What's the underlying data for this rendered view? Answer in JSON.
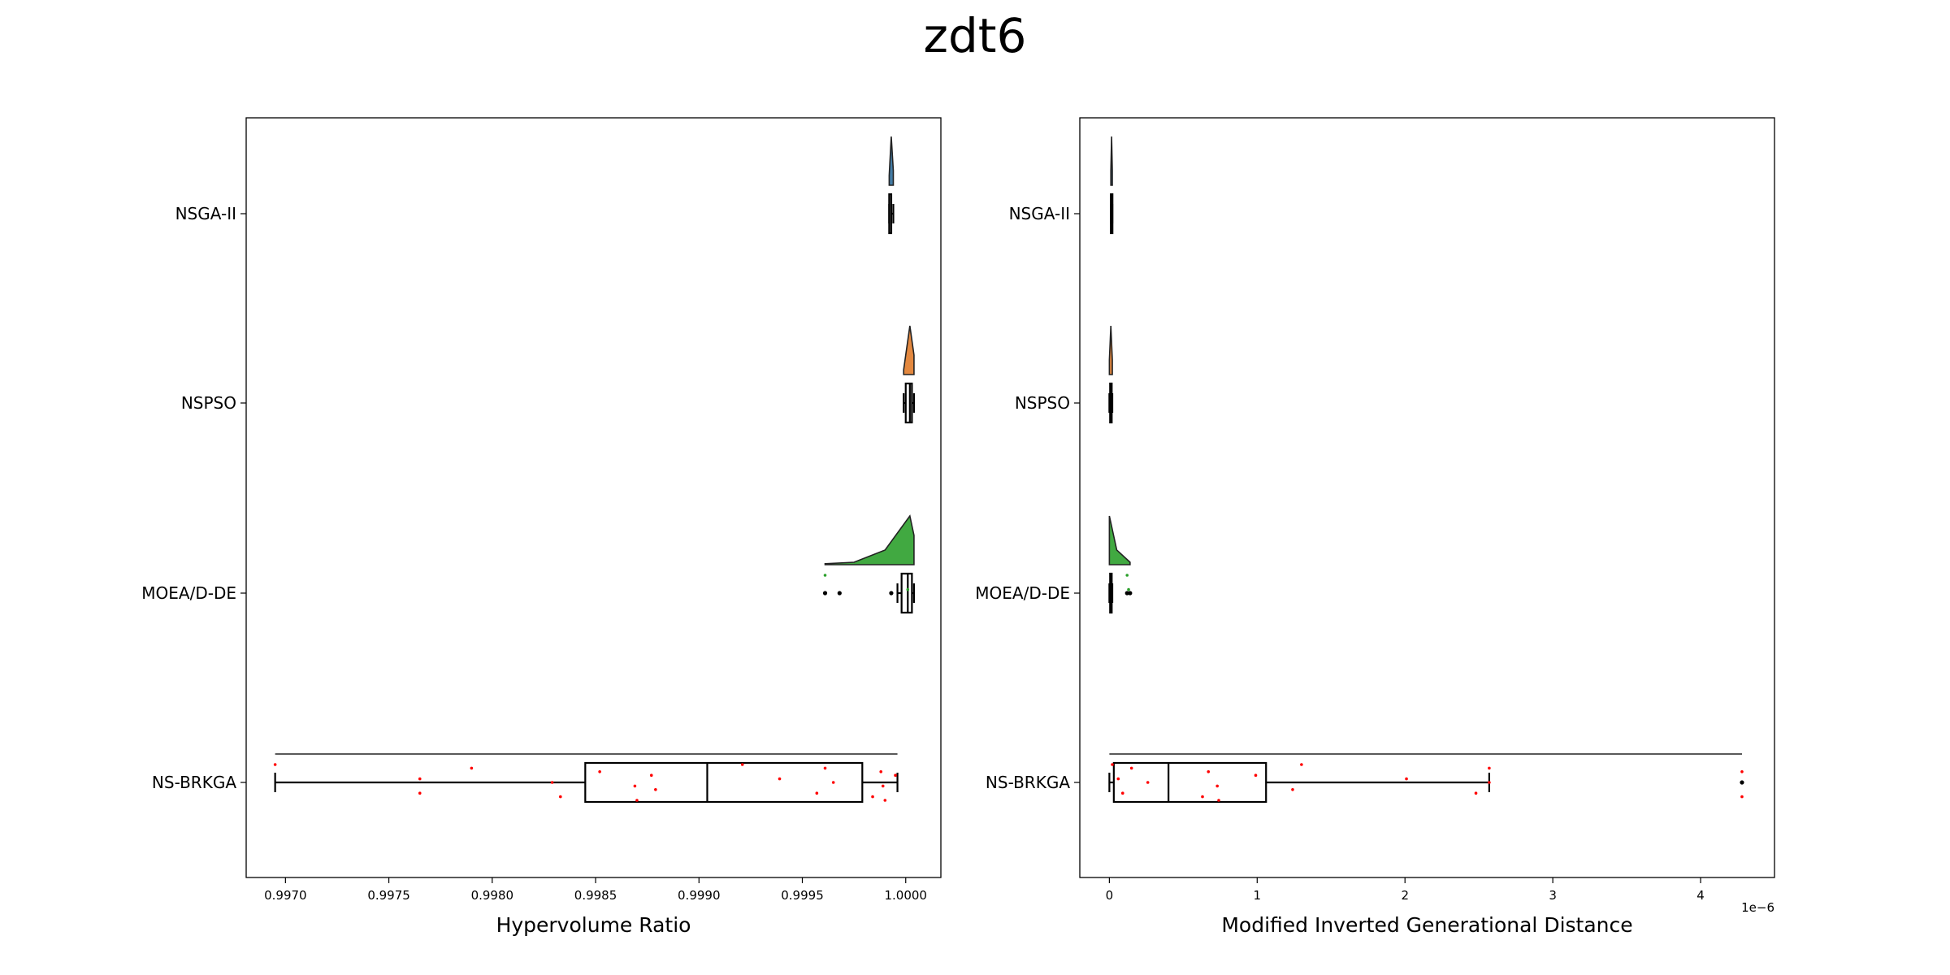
{
  "title": "zdt6",
  "chart_data": [
    {
      "type": "raincloud",
      "xlabel": "Hypervolume Ratio",
      "xlim": [
        0.99681,
        1.00017
      ],
      "xticks": [
        "0.9970",
        "0.9975",
        "0.9980",
        "0.9985",
        "0.9990",
        "0.9995",
        "1.0000"
      ],
      "tick_values": [
        0.997,
        0.9975,
        0.998,
        0.9985,
        0.999,
        0.9995,
        1.0
      ],
      "offset_label": "",
      "categories": [
        "NSGA-II",
        "NSPSO",
        "MOEA/D-DE",
        "NS-BRKGA"
      ],
      "series": [
        {
          "name": "NSGA-II",
          "color": "#2f6d9a",
          "min": 0.99992,
          "q1": 0.99992,
          "median": 0.99993,
          "q3": 0.99993,
          "max": 0.99994,
          "violin": [
            [
              0.99992,
              0.2
            ],
            [
              0.99993,
              1.0
            ],
            [
              0.99994,
              0.3
            ]
          ],
          "outliers": [],
          "points": []
        },
        {
          "name": "NSPSO",
          "color": "#e07b2a",
          "min": 0.99999,
          "q1": 1.0,
          "median": 1.00002,
          "q3": 1.00003,
          "max": 1.00004,
          "violin": [
            [
              0.99999,
              0.1
            ],
            [
              1.00002,
              1.0
            ],
            [
              1.00004,
              0.4
            ]
          ],
          "outliers": [],
          "points": []
        },
        {
          "name": "MOEA/D-DE",
          "color": "#2ca02c",
          "min": 0.99996,
          "q1": 0.99998,
          "median": 1.00001,
          "q3": 1.00003,
          "max": 1.00004,
          "violin": [
            [
              0.99961,
              0.02
            ],
            [
              0.99975,
              0.05
            ],
            [
              0.9999,
              0.3
            ],
            [
              1.00002,
              1.0
            ],
            [
              1.00004,
              0.6
            ]
          ],
          "outliers": [
            0.99961,
            0.99968,
            0.99993
          ],
          "points": [
            0.99961,
            1.00001
          ]
        },
        {
          "name": "NS-BRKGA",
          "color": "#ff0000",
          "min": 0.99695,
          "q1": 0.99845,
          "median": 0.99904,
          "q3": 0.99979,
          "max": 0.99996,
          "violin": [
            [
              0.99695,
              0.0
            ],
            [
              0.99996,
              0.0
            ]
          ],
          "outliers": [],
          "points": [
            0.99695,
            0.99765,
            0.99765,
            0.9979,
            0.99829,
            0.99833,
            0.99852,
            0.99869,
            0.9987,
            0.99877,
            0.99879,
            0.99921,
            0.99939,
            0.99957,
            0.99961,
            0.99965,
            0.99984,
            0.99988,
            0.99989,
            0.9999,
            0.99995
          ]
        }
      ]
    },
    {
      "type": "raincloud",
      "xlabel": "Modified Inverted Generational Distance",
      "xlim": [
        -0.2,
        4.5
      ],
      "xticks": [
        "0",
        "1",
        "2",
        "3",
        "4"
      ],
      "tick_values": [
        0,
        1,
        2,
        3,
        4
      ],
      "offset_label": "1e−6",
      "categories": [
        "NSGA-II",
        "NSPSO",
        "MOEA/D-DE",
        "NS-BRKGA"
      ],
      "series": [
        {
          "name": "NSGA-II",
          "color": "#2f6d9a",
          "min": 0.01,
          "q1": 0.01,
          "median": 0.015,
          "q3": 0.02,
          "max": 0.02,
          "violin": [
            [
              0.01,
              0.3
            ],
            [
              0.015,
              1.0
            ],
            [
              0.02,
              0.3
            ]
          ],
          "outliers": [],
          "points": []
        },
        {
          "name": "NSPSO",
          "color": "#e07b2a",
          "min": 0.0,
          "q1": 0.005,
          "median": 0.01,
          "q3": 0.015,
          "max": 0.02,
          "violin": [
            [
              0.0,
              0.3
            ],
            [
              0.01,
              1.0
            ],
            [
              0.02,
              0.3
            ]
          ],
          "outliers": [],
          "points": []
        },
        {
          "name": "MOEA/D-DE",
          "color": "#2ca02c",
          "min": 0.0,
          "q1": 0.005,
          "median": 0.01,
          "q3": 0.015,
          "max": 0.02,
          "violin": [
            [
              0.0,
              1.0
            ],
            [
              0.05,
              0.3
            ],
            [
              0.14,
              0.05
            ]
          ],
          "outliers": [
            0.12,
            0.14
          ],
          "points": [
            0.12,
            0.13
          ]
        },
        {
          "name": "NS-BRKGA",
          "color": "#ff0000",
          "min": 0.0,
          "q1": 0.03,
          "median": 0.4,
          "q3": 1.06,
          "max": 2.57,
          "violin": [
            [
              0.0,
              0.0
            ],
            [
              4.28,
              0.0
            ]
          ],
          "outliers": [
            4.28
          ],
          "points": [
            0.02,
            0.06,
            0.09,
            0.15,
            0.26,
            0.63,
            0.67,
            0.73,
            0.74,
            0.99,
            1.24,
            1.3,
            2.01,
            2.48,
            2.57,
            2.57,
            4.28,
            4.28
          ]
        }
      ]
    }
  ]
}
